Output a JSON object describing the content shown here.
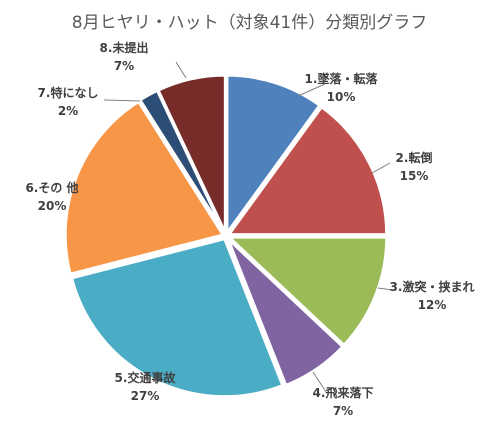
{
  "chart_data": {
    "type": "pie",
    "title": "8月ヒヤリ・ハット（対象41件）分類別グラフ",
    "slices": [
      {
        "label": "1.墜落・転落",
        "percent_label": "10%",
        "value": 10,
        "color": "#4f81bd"
      },
      {
        "label": "2.転倒",
        "percent_label": "15%",
        "value": 15,
        "color": "#c0504d"
      },
      {
        "label": "3.激突・挟まれ",
        "percent_label": "12%",
        "value": 12,
        "color": "#9bbb59"
      },
      {
        "label": "4.飛来落下",
        "percent_label": "7%",
        "value": 7,
        "color": "#8064a2"
      },
      {
        "label": "5.交通事故",
        "percent_label": "27%",
        "value": 27,
        "color": "#4bacc6"
      },
      {
        "label": "6.その 他",
        "percent_label": "20%",
        "value": 20,
        "color": "#f79646"
      },
      {
        "label": "7.特になし",
        "percent_label": "2%",
        "value": 2,
        "color": "#2c4d75"
      },
      {
        "label": "8.未提出",
        "percent_label": "7%",
        "value": 7,
        "color": "#772c2a"
      }
    ],
    "legend": "none",
    "grid": false
  }
}
